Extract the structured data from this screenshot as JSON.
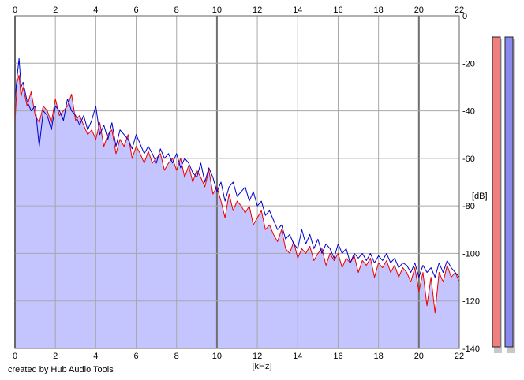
{
  "credit": "created by Hub Audio Tools",
  "chart_data": {
    "type": "line",
    "xlabel": "[kHz]",
    "ylabel": "[dB]",
    "xlim": [
      0,
      22
    ],
    "ylim": [
      -140,
      0
    ],
    "xticks": [
      0,
      2,
      4,
      6,
      8,
      10,
      12,
      14,
      16,
      18,
      20,
      22
    ],
    "yticks": [
      0,
      -20,
      -40,
      -60,
      -80,
      -100,
      -120,
      -140
    ],
    "grid": true,
    "series": [
      {
        "color": "#ee0000",
        "fill": "#c4c4ff",
        "x": [
          0.0,
          0.1,
          0.2,
          0.3,
          0.4,
          0.6,
          0.8,
          1.0,
          1.2,
          1.4,
          1.6,
          1.8,
          2.0,
          2.2,
          2.4,
          2.6,
          2.8,
          3.0,
          3.2,
          3.4,
          3.6,
          3.8,
          4.0,
          4.2,
          4.4,
          4.6,
          4.8,
          5.0,
          5.2,
          5.4,
          5.6,
          5.8,
          6.0,
          6.2,
          6.4,
          6.6,
          6.8,
          7.0,
          7.2,
          7.4,
          7.6,
          7.8,
          8.0,
          8.2,
          8.4,
          8.6,
          8.8,
          9.0,
          9.2,
          9.4,
          9.6,
          9.8,
          10.0,
          10.2,
          10.4,
          10.6,
          10.8,
          11.0,
          11.2,
          11.4,
          11.6,
          11.8,
          12.0,
          12.2,
          12.4,
          12.6,
          12.8,
          13.0,
          13.2,
          13.4,
          13.6,
          13.8,
          14.0,
          14.2,
          14.4,
          14.6,
          14.8,
          15.0,
          15.2,
          15.4,
          15.6,
          15.8,
          16.0,
          16.2,
          16.4,
          16.6,
          16.8,
          17.0,
          17.2,
          17.4,
          17.6,
          17.8,
          18.0,
          18.2,
          18.4,
          18.6,
          18.8,
          19.0,
          19.2,
          19.4,
          19.6,
          19.8,
          20.0,
          20.2,
          20.4,
          20.6,
          20.8,
          21.0,
          21.2,
          21.4,
          21.6,
          21.8,
          22.0
        ],
        "values": [
          -45,
          -28,
          -25,
          -34,
          -30,
          -38,
          -32,
          -42,
          -45,
          -38,
          -40,
          -45,
          -35,
          -42,
          -40,
          -38,
          -33,
          -44,
          -42,
          -46,
          -50,
          -48,
          -52,
          -45,
          -55,
          -50,
          -48,
          -58,
          -52,
          -55,
          -50,
          -60,
          -55,
          -58,
          -62,
          -57,
          -62,
          -60,
          -58,
          -65,
          -62,
          -60,
          -65,
          -60,
          -68,
          -63,
          -70,
          -65,
          -68,
          -72,
          -65,
          -75,
          -72,
          -78,
          -85,
          -75,
          -82,
          -78,
          -80,
          -83,
          -80,
          -88,
          -85,
          -82,
          -90,
          -88,
          -92,
          -95,
          -90,
          -98,
          -100,
          -95,
          -102,
          -98,
          -100,
          -97,
          -103,
          -100,
          -98,
          -105,
          -100,
          -103,
          -100,
          -106,
          -102,
          -104,
          -101,
          -108,
          -103,
          -105,
          -102,
          -110,
          -104,
          -106,
          -103,
          -108,
          -105,
          -110,
          -106,
          -108,
          -112,
          -106,
          -116,
          -108,
          -122,
          -110,
          -125,
          -108,
          -112,
          -105,
          -110,
          -108,
          -112
        ]
      },
      {
        "color": "#0000cc",
        "x": [
          0.0,
          0.1,
          0.2,
          0.3,
          0.4,
          0.6,
          0.8,
          1.0,
          1.2,
          1.4,
          1.6,
          1.8,
          2.0,
          2.2,
          2.4,
          2.6,
          2.8,
          3.0,
          3.2,
          3.4,
          3.6,
          3.8,
          4.0,
          4.2,
          4.4,
          4.6,
          4.8,
          5.0,
          5.2,
          5.4,
          5.6,
          5.8,
          6.0,
          6.2,
          6.4,
          6.6,
          6.8,
          7.0,
          7.2,
          7.4,
          7.6,
          7.8,
          8.0,
          8.2,
          8.4,
          8.6,
          8.8,
          9.0,
          9.2,
          9.4,
          9.6,
          9.8,
          10.0,
          10.2,
          10.4,
          10.6,
          10.8,
          11.0,
          11.2,
          11.4,
          11.6,
          11.8,
          12.0,
          12.2,
          12.4,
          12.6,
          12.8,
          13.0,
          13.2,
          13.4,
          13.6,
          13.8,
          14.0,
          14.2,
          14.4,
          14.6,
          14.8,
          15.0,
          15.2,
          15.4,
          15.6,
          15.8,
          16.0,
          16.2,
          16.4,
          16.6,
          16.8,
          17.0,
          17.2,
          17.4,
          17.6,
          17.8,
          18.0,
          18.2,
          18.4,
          18.6,
          18.8,
          19.0,
          19.2,
          19.4,
          19.6,
          19.8,
          20.0,
          20.2,
          20.4,
          20.6,
          20.8,
          21.0,
          21.2,
          21.4,
          21.6,
          21.8,
          22.0
        ],
        "values": [
          -35,
          -26,
          -18,
          -30,
          -28,
          -36,
          -40,
          -38,
          -55,
          -40,
          -42,
          -48,
          -38,
          -40,
          -44,
          -35,
          -40,
          -42,
          -46,
          -42,
          -48,
          -44,
          -38,
          -50,
          -46,
          -52,
          -45,
          -55,
          -48,
          -50,
          -52,
          -56,
          -50,
          -54,
          -58,
          -55,
          -58,
          -62,
          -56,
          -60,
          -58,
          -62,
          -58,
          -64,
          -60,
          -62,
          -66,
          -68,
          -62,
          -70,
          -64,
          -68,
          -74,
          -70,
          -78,
          -72,
          -70,
          -76,
          -74,
          -72,
          -78,
          -74,
          -80,
          -78,
          -84,
          -82,
          -86,
          -90,
          -88,
          -94,
          -92,
          -96,
          -98,
          -90,
          -96,
          -92,
          -98,
          -94,
          -100,
          -96,
          -98,
          -102,
          -96,
          -100,
          -98,
          -104,
          -100,
          -102,
          -100,
          -103,
          -100,
          -104,
          -101,
          -103,
          -100,
          -104,
          -102,
          -106,
          -104,
          -105,
          -108,
          -104,
          -110,
          -105,
          -108,
          -106,
          -110,
          -104,
          -108,
          -103,
          -106,
          -108,
          -110
        ]
      }
    ],
    "meters": [
      {
        "color": "#f08080",
        "level": 1.0
      },
      {
        "color": "#8a8aee",
        "level": 1.0
      }
    ]
  }
}
